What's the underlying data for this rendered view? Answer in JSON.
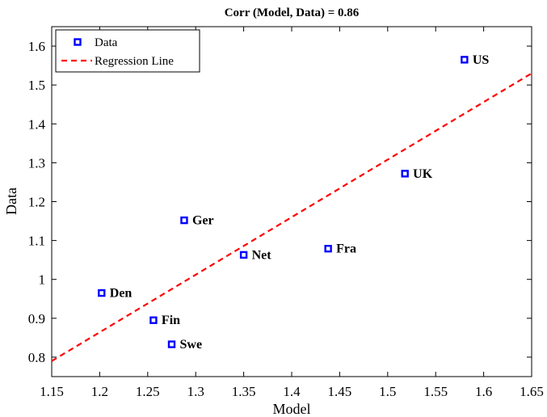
{
  "chart_data": {
    "type": "scatter",
    "title": "Corr (Model, Data) = 0.86",
    "xlabel": "Model",
    "ylabel": "Data",
    "xlim": [
      1.15,
      1.65
    ],
    "ylim": [
      0.75,
      1.65
    ],
    "xticks": [
      "1.15",
      "1.2",
      "1.25",
      "1.3",
      "1.35",
      "1.4",
      "1.45",
      "1.5",
      "1.55",
      "1.6",
      "1.65"
    ],
    "yticks": [
      "0.8",
      "0.9",
      "1",
      "1.1",
      "1.2",
      "1.3",
      "1.4",
      "1.5",
      "1.6"
    ],
    "grid": false,
    "legend_position": "top-left",
    "series": [
      {
        "name": "Data",
        "color": "#0000ff",
        "marker": "square",
        "points": [
          {
            "label": "US",
            "x": 1.58,
            "y": 1.565
          },
          {
            "label": "UK",
            "x": 1.518,
            "y": 1.272
          },
          {
            "label": "Ger",
            "x": 1.288,
            "y": 1.152
          },
          {
            "label": "Fra",
            "x": 1.438,
            "y": 1.079
          },
          {
            "label": "Net",
            "x": 1.35,
            "y": 1.063
          },
          {
            "label": "Den",
            "x": 1.202,
            "y": 0.965
          },
          {
            "label": "Fin",
            "x": 1.256,
            "y": 0.895
          },
          {
            "label": "Swe",
            "x": 1.275,
            "y": 0.833
          }
        ]
      },
      {
        "name": "Regression Line",
        "color": "#ff0000",
        "style": "dashed",
        "line": [
          [
            1.15,
            0.79
          ],
          [
            1.65,
            1.53
          ]
        ]
      }
    ]
  }
}
